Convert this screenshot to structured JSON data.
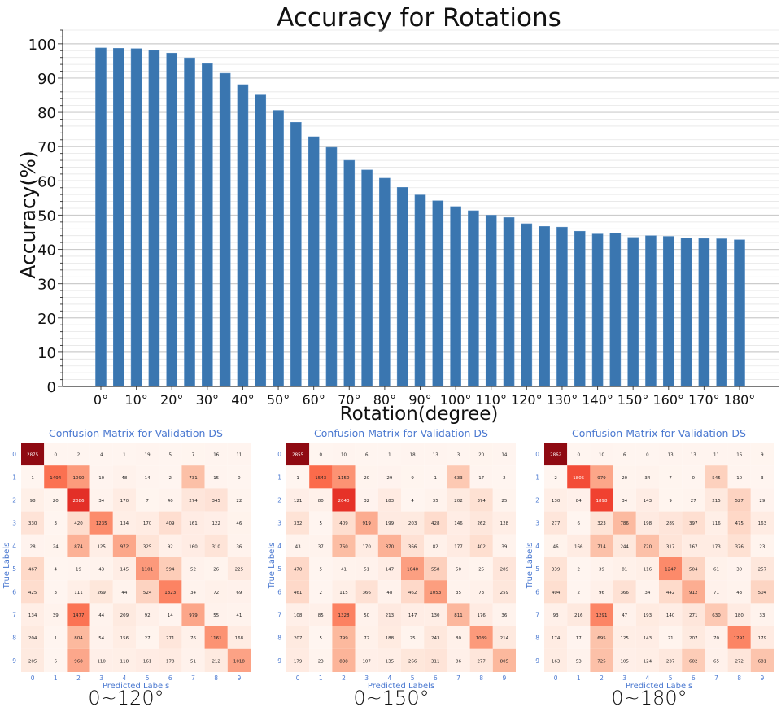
{
  "chart_data": [
    {
      "type": "bar",
      "title": "Accuracy for Rotations",
      "xlabel": "Rotation(degree)",
      "ylabel": "Accuracy(%)",
      "ylim": [
        0,
        104
      ],
      "yticks": [
        0,
        10,
        20,
        30,
        40,
        50,
        60,
        70,
        80,
        90,
        100
      ],
      "grid": "horizontal major and minor",
      "bar_color": "#3a76b0",
      "categories": [
        "0°",
        "5°",
        "10°",
        "15°",
        "20°",
        "25°",
        "30°",
        "35°",
        "40°",
        "45°",
        "50°",
        "55°",
        "60°",
        "65°",
        "70°",
        "75°",
        "80°",
        "85°",
        "90°",
        "95°",
        "100°",
        "105°",
        "110°",
        "115°",
        "120°",
        "125°",
        "130°",
        "135°",
        "140°",
        "145°",
        "150°",
        "155°",
        "160°",
        "165°",
        "170°",
        "175°",
        "180°"
      ],
      "xtick_labels": [
        "0°",
        "10°",
        "20°",
        "30°",
        "40°",
        "50°",
        "60°",
        "70°",
        "80°",
        "90°",
        "100°",
        "110°",
        "120°",
        "130°",
        "140°",
        "150°",
        "160°",
        "170°",
        "180°"
      ],
      "values": [
        98.8,
        98.7,
        98.6,
        98.1,
        97.3,
        95.9,
        94.2,
        91.4,
        88.1,
        85.1,
        80.6,
        77.1,
        72.9,
        69.8,
        66.0,
        63.2,
        60.8,
        58.1,
        55.9,
        54.2,
        52.5,
        51.3,
        50.0,
        49.3,
        47.5,
        46.7,
        46.5,
        45.3,
        44.5,
        44.8,
        43.5,
        44.0,
        43.8,
        43.3,
        43.2,
        43.1,
        42.8
      ]
    },
    {
      "type": "heatmap",
      "title": "Confusion Matrix for Validation DS",
      "caption": "0~120°",
      "xlabel": "Predicted Labels",
      "ylabel": "True Labels",
      "labels": [
        "0",
        "1",
        "2",
        "3",
        "4",
        "5",
        "6",
        "7",
        "8",
        "9"
      ],
      "colormap": "Reds",
      "matrix": [
        [
          2875,
          0,
          2,
          4,
          1,
          19,
          5,
          7,
          16,
          11
        ],
        [
          1,
          1494,
          1090,
          10,
          48,
          14,
          2,
          731,
          15,
          0
        ],
        [
          98,
          20,
          2086,
          34,
          170,
          7,
          40,
          274,
          345,
          22
        ],
        [
          330,
          3,
          420,
          1235,
          134,
          170,
          409,
          161,
          122,
          46
        ],
        [
          28,
          24,
          874,
          125,
          972,
          325,
          92,
          160,
          310,
          36
        ],
        [
          467,
          4,
          19,
          43,
          145,
          1101,
          594,
          52,
          26,
          225
        ],
        [
          425,
          3,
          111,
          269,
          44,
          524,
          1323,
          34,
          72,
          69
        ],
        [
          134,
          39,
          1477,
          44,
          209,
          92,
          14,
          979,
          55,
          41
        ],
        [
          204,
          1,
          804,
          54,
          156,
          27,
          271,
          76,
          1161,
          168
        ],
        [
          205,
          6,
          968,
          110,
          118,
          161,
          178,
          51,
          212,
          1018
        ]
      ]
    },
    {
      "type": "heatmap",
      "title": "Confusion Matrix for Validation DS",
      "caption": "0~150°",
      "xlabel": "Predicted Labels",
      "ylabel": "True Labels",
      "labels": [
        "0",
        "1",
        "2",
        "3",
        "4",
        "5",
        "6",
        "7",
        "8",
        "9"
      ],
      "colormap": "Reds",
      "matrix": [
        [
          2855,
          0,
          10,
          6,
          1,
          18,
          13,
          3,
          20,
          14
        ],
        [
          1,
          1543,
          1150,
          20,
          29,
          9,
          1,
          633,
          17,
          2
        ],
        [
          121,
          80,
          2040,
          32,
          183,
          4,
          35,
          202,
          374,
          25
        ],
        [
          332,
          5,
          409,
          919,
          199,
          203,
          428,
          146,
          262,
          128
        ],
        [
          43,
          37,
          760,
          170,
          870,
          366,
          82,
          177,
          402,
          39
        ],
        [
          470,
          5,
          41,
          51,
          147,
          1040,
          558,
          50,
          25,
          289
        ],
        [
          461,
          2,
          115,
          366,
          48,
          462,
          1053,
          35,
          73,
          259
        ],
        [
          108,
          85,
          1328,
          50,
          213,
          147,
          130,
          811,
          176,
          36
        ],
        [
          207,
          5,
          799,
          72,
          188,
          25,
          243,
          80,
          1089,
          214
        ],
        [
          179,
          23,
          838,
          107,
          135,
          266,
          311,
          86,
          277,
          805
        ]
      ]
    },
    {
      "type": "heatmap",
      "title": "Confusion Matrix for Validation DS",
      "caption": "0~180°",
      "xlabel": "Predicted Labels",
      "ylabel": "True Labels",
      "labels": [
        "0",
        "1",
        "2",
        "3",
        "4",
        "5",
        "6",
        "7",
        "8",
        "9"
      ],
      "colormap": "Reds",
      "matrix": [
        [
          2862,
          0,
          10,
          6,
          0,
          13,
          13,
          11,
          16,
          9
        ],
        [
          2,
          1805,
          979,
          20,
          34,
          7,
          0,
          545,
          10,
          3
        ],
        [
          130,
          84,
          1898,
          34,
          143,
          9,
          27,
          215,
          527,
          29
        ],
        [
          277,
          6,
          323,
          786,
          198,
          289,
          397,
          116,
          475,
          163
        ],
        [
          46,
          166,
          714,
          244,
          720,
          317,
          167,
          173,
          376,
          23
        ],
        [
          339,
          2,
          39,
          81,
          116,
          1247,
          504,
          61,
          30,
          257
        ],
        [
          404,
          2,
          96,
          366,
          34,
          442,
          912,
          71,
          43,
          504
        ],
        [
          93,
          216,
          1291,
          47,
          193,
          140,
          271,
          630,
          180,
          33
        ],
        [
          174,
          17,
          695,
          125,
          143,
          21,
          207,
          70,
          1291,
          179
        ],
        [
          163,
          53,
          725,
          105,
          124,
          237,
          602,
          65,
          272,
          681
        ]
      ]
    }
  ],
  "colors": {
    "bar": "#3a76b0",
    "heatmap_label": "#4a78d0",
    "text": "#111111",
    "grid_major": "#cccccc",
    "grid_minor": "#e6e6e6"
  }
}
